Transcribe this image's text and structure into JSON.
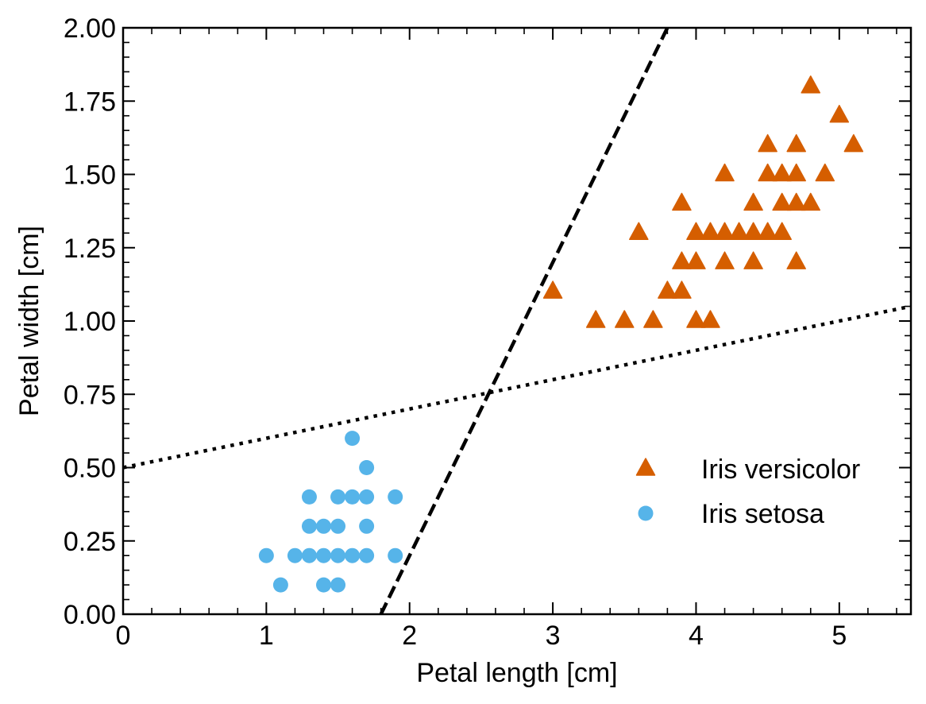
{
  "chart_data": {
    "type": "scatter",
    "xlabel": "Petal length [cm]",
    "ylabel": "Petal width [cm]",
    "xlim": [
      0,
      5.5
    ],
    "ylim": [
      0,
      2.0
    ],
    "x_ticks": [
      0,
      1,
      2,
      3,
      4,
      5
    ],
    "x_tick_labels": [
      "0",
      "1",
      "2",
      "3",
      "4",
      "5"
    ],
    "y_ticks": [
      0,
      0.25,
      0.5,
      0.75,
      1.0,
      1.25,
      1.5,
      1.75,
      2.0
    ],
    "y_tick_labels": [
      "0.00",
      "0.25",
      "0.50",
      "0.75",
      "1.00",
      "1.25",
      "1.50",
      "1.75",
      "2.00"
    ],
    "grid": false,
    "legend_position": "bottom-right",
    "series": [
      {
        "name": "Iris versicolor",
        "marker": "triangle",
        "color": "#d55e00",
        "points": [
          [
            3.0,
            1.1
          ],
          [
            3.3,
            1.0
          ],
          [
            3.5,
            1.0
          ],
          [
            3.6,
            1.3
          ],
          [
            3.7,
            1.0
          ],
          [
            3.8,
            1.1
          ],
          [
            3.9,
            1.1
          ],
          [
            3.9,
            1.2
          ],
          [
            3.9,
            1.4
          ],
          [
            4.0,
            1.0
          ],
          [
            4.0,
            1.2
          ],
          [
            4.0,
            1.3
          ],
          [
            4.1,
            1.0
          ],
          [
            4.1,
            1.3
          ],
          [
            4.2,
            1.2
          ],
          [
            4.2,
            1.3
          ],
          [
            4.2,
            1.5
          ],
          [
            4.3,
            1.3
          ],
          [
            4.4,
            1.2
          ],
          [
            4.4,
            1.3
          ],
          [
            4.4,
            1.4
          ],
          [
            4.5,
            1.3
          ],
          [
            4.5,
            1.5
          ],
          [
            4.5,
            1.6
          ],
          [
            4.6,
            1.3
          ],
          [
            4.6,
            1.4
          ],
          [
            4.6,
            1.5
          ],
          [
            4.7,
            1.2
          ],
          [
            4.7,
            1.4
          ],
          [
            4.7,
            1.5
          ],
          [
            4.7,
            1.6
          ],
          [
            4.8,
            1.4
          ],
          [
            4.8,
            1.8
          ],
          [
            4.9,
            1.5
          ],
          [
            5.0,
            1.7
          ],
          [
            5.1,
            1.6
          ]
        ]
      },
      {
        "name": "Iris setosa",
        "marker": "circle",
        "color": "#56b4e9",
        "points": [
          [
            1.0,
            0.2
          ],
          [
            1.1,
            0.1
          ],
          [
            1.2,
            0.2
          ],
          [
            1.3,
            0.2
          ],
          [
            1.3,
            0.3
          ],
          [
            1.3,
            0.4
          ],
          [
            1.4,
            0.1
          ],
          [
            1.4,
            0.2
          ],
          [
            1.4,
            0.3
          ],
          [
            1.5,
            0.1
          ],
          [
            1.5,
            0.2
          ],
          [
            1.5,
            0.3
          ],
          [
            1.5,
            0.4
          ],
          [
            1.6,
            0.2
          ],
          [
            1.6,
            0.4
          ],
          [
            1.6,
            0.6
          ],
          [
            1.7,
            0.2
          ],
          [
            1.7,
            0.3
          ],
          [
            1.7,
            0.4
          ],
          [
            1.7,
            0.5
          ],
          [
            1.9,
            0.2
          ],
          [
            1.9,
            0.4
          ]
        ]
      }
    ],
    "lines": [
      {
        "style": "dashed",
        "color": "#000000",
        "points": [
          [
            1.8,
            0.0
          ],
          [
            3.8,
            2.0
          ]
        ]
      },
      {
        "style": "dotted",
        "color": "#000000",
        "points": [
          [
            0.0,
            0.5
          ],
          [
            5.5,
            1.05
          ]
        ]
      }
    ]
  }
}
